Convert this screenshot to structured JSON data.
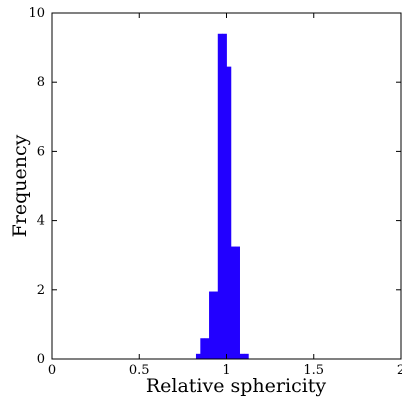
{
  "chart_data": {
    "type": "bar",
    "xlabel": "Relative sphericity",
    "ylabel": "Frequency",
    "xlim": [
      0,
      2
    ],
    "ylim": [
      0,
      10
    ],
    "x_ticks": [
      "0",
      "0.5",
      "1",
      "1.5",
      "2"
    ],
    "y_ticks": [
      "0",
      "2",
      "4",
      "6",
      "8",
      "10"
    ],
    "grid": false,
    "bar_color": "#2200ff",
    "bin_width": 0.025,
    "bins": [
      {
        "x0": 0.825,
        "x1": 0.85,
        "value": 0.15
      },
      {
        "x0": 0.85,
        "x1": 0.875,
        "value": 0.6
      },
      {
        "x0": 0.875,
        "x1": 0.9,
        "value": 0.6
      },
      {
        "x0": 0.9,
        "x1": 0.925,
        "value": 1.95
      },
      {
        "x0": 0.925,
        "x1": 0.95,
        "value": 1.95
      },
      {
        "x0": 0.95,
        "x1": 0.975,
        "value": 9.4
      },
      {
        "x0": 0.975,
        "x1": 1.0,
        "value": 9.4
      },
      {
        "x0": 1.0,
        "x1": 1.025,
        "value": 8.45
      },
      {
        "x0": 1.025,
        "x1": 1.05,
        "value": 3.25
      },
      {
        "x0": 1.05,
        "x1": 1.075,
        "value": 3.25
      },
      {
        "x0": 1.075,
        "x1": 1.1,
        "value": 0.15
      },
      {
        "x0": 1.1,
        "x1": 1.125,
        "value": 0.15
      }
    ]
  }
}
